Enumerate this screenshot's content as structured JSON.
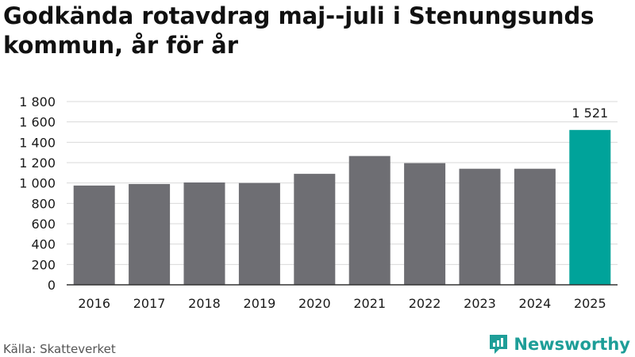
{
  "title": "Godkända rotavdrag maj--juli i Stenungsunds kommun, år för år",
  "source": "Källa: Skatteverket",
  "brand": {
    "name": "Newsworthy",
    "icon": "newsworthy-logo-icon",
    "color": "#1e9e98"
  },
  "colors": {
    "bar": "#6e6e73",
    "highlight": "#00a39a",
    "grid": "#d9d9d9",
    "axis": "#333333"
  },
  "chart_data": {
    "type": "bar",
    "categories": [
      "2016",
      "2017",
      "2018",
      "2019",
      "2020",
      "2021",
      "2022",
      "2023",
      "2024",
      "2025"
    ],
    "values": [
      975,
      990,
      1005,
      1000,
      1090,
      1265,
      1195,
      1140,
      1140,
      1521
    ],
    "highlight_index": 9,
    "data_labels": [
      {
        "index": 9,
        "text": "1 521"
      }
    ],
    "yticks": [
      0,
      200,
      400,
      600,
      800,
      1000,
      1200,
      1400,
      1600,
      1800
    ],
    "ytick_labels": [
      "0",
      "200",
      "400",
      "600",
      "800",
      "1 000",
      "1 200",
      "1 400",
      "1 600",
      "1 800"
    ],
    "ylim": [
      0,
      1800
    ],
    "grid": true,
    "legend": "none",
    "xlabel": "",
    "ylabel": ""
  }
}
